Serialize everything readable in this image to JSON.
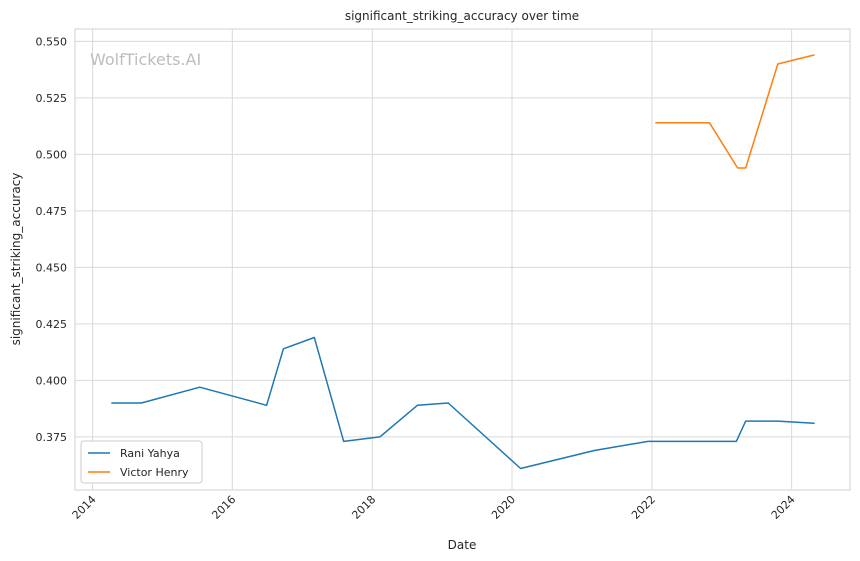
{
  "watermark": "WolfTickets.AI",
  "chart_data": {
    "type": "line",
    "title": "significant_striking_accuracy over time",
    "xlabel": "Date",
    "ylabel": "significant_striking_accuracy",
    "x_range": [
      "2013-10-01",
      "2024-11-01"
    ],
    "ylim": [
      0.3515,
      0.5555
    ],
    "x_ticks": [
      {
        "date": "2014-01-01",
        "label": "2014"
      },
      {
        "date": "2016-01-01",
        "label": "2016"
      },
      {
        "date": "2018-01-01",
        "label": "2018"
      },
      {
        "date": "2020-01-01",
        "label": "2020"
      },
      {
        "date": "2022-01-01",
        "label": "2022"
      },
      {
        "date": "2024-01-01",
        "label": "2024"
      }
    ],
    "y_ticks": [
      {
        "value": 0.375,
        "label": "0.375"
      },
      {
        "value": 0.4,
        "label": "0.400"
      },
      {
        "value": 0.425,
        "label": "0.425"
      },
      {
        "value": 0.45,
        "label": "0.450"
      },
      {
        "value": 0.475,
        "label": "0.475"
      },
      {
        "value": 0.5,
        "label": "0.500"
      },
      {
        "value": 0.525,
        "label": "0.525"
      },
      {
        "value": 0.55,
        "label": "0.550"
      }
    ],
    "grid": true,
    "legend_position": "lower-left",
    "series": [
      {
        "name": "Rani Yahya",
        "color": "#1f77b4",
        "points": [
          {
            "x": "2014-04-12",
            "y": 0.39
          },
          {
            "x": "2014-09-13",
            "y": 0.39
          },
          {
            "x": "2015-07-15",
            "y": 0.397
          },
          {
            "x": "2016-06-28",
            "y": 0.389
          },
          {
            "x": "2016-09-24",
            "y": 0.414
          },
          {
            "x": "2017-03-04",
            "y": 0.419
          },
          {
            "x": "2017-08-05",
            "y": 0.373
          },
          {
            "x": "2018-02-10",
            "y": 0.375
          },
          {
            "x": "2018-08-25",
            "y": 0.389
          },
          {
            "x": "2019-02-02",
            "y": 0.39
          },
          {
            "x": "2020-02-15",
            "y": 0.361
          },
          {
            "x": "2021-03-06",
            "y": 0.369
          },
          {
            "x": "2021-12-11",
            "y": 0.373
          },
          {
            "x": "2023-03-18",
            "y": 0.373
          },
          {
            "x": "2023-05-06",
            "y": 0.382
          },
          {
            "x": "2023-10-21",
            "y": 0.382
          },
          {
            "x": "2024-04-27",
            "y": 0.381
          }
        ]
      },
      {
        "name": "Victor Henry",
        "color": "#ff7f0e",
        "points": [
          {
            "x": "2022-01-22",
            "y": 0.514
          },
          {
            "x": "2022-10-29",
            "y": 0.514
          },
          {
            "x": "2023-03-25",
            "y": 0.494
          },
          {
            "x": "2023-05-06",
            "y": 0.494
          },
          {
            "x": "2023-10-21",
            "y": 0.54
          },
          {
            "x": "2024-04-27",
            "y": 0.544
          }
        ]
      }
    ]
  }
}
